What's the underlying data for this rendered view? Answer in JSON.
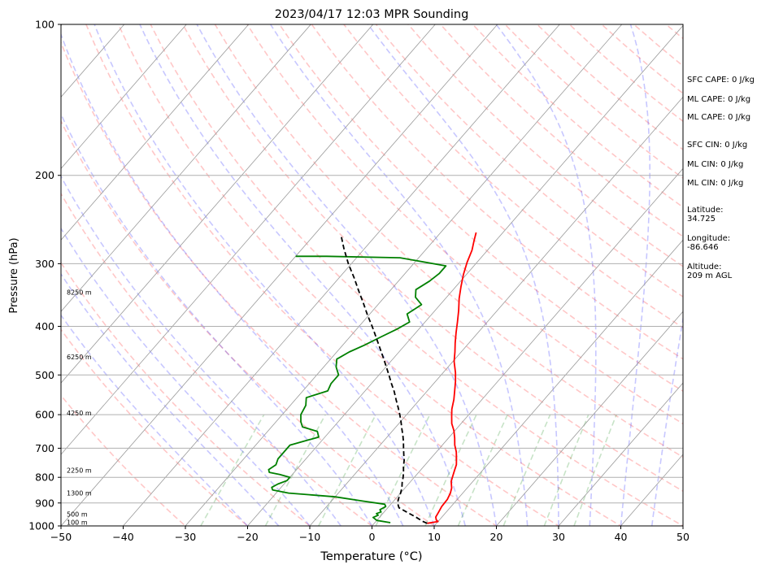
{
  "chart_data": {
    "type": "line",
    "title": "2023/04/17 12:03 MPR Sounding",
    "xlabel": "Temperature (°C)",
    "ylabel": "Pressure (hPa)",
    "xlim": [
      -50,
      50
    ],
    "ylim": [
      1000,
      100
    ],
    "y_scale": "log",
    "grid": true,
    "x_ticks": [
      "−50",
      "−40",
      "−30",
      "−20",
      "−10",
      "0",
      "10",
      "20",
      "30",
      "40",
      "50"
    ],
    "y_ticks": [
      "100",
      "200",
      "300",
      "400",
      "500",
      "600",
      "700",
      "800",
      "900",
      "1000"
    ],
    "height_labels": [
      {
        "p": 983,
        "label": "100 m"
      },
      {
        "p": 948,
        "label": "500 m"
      },
      {
        "p": 860,
        "label": "1300 m"
      },
      {
        "p": 775,
        "label": "2250 m"
      },
      {
        "p": 595,
        "label": "4250 m"
      },
      {
        "p": 460,
        "label": "6250 m"
      },
      {
        "p": 342,
        "label": "8250 m"
      }
    ],
    "series": [
      {
        "kind": "temperature",
        "color": "#ff0000",
        "points": [
          [
            988,
            8.5
          ],
          [
            980,
            10.0
          ],
          [
            973,
            9.5
          ],
          [
            960,
            9.0
          ],
          [
            940,
            8.8
          ],
          [
            915,
            8.5
          ],
          [
            885,
            8.4
          ],
          [
            860,
            8.0
          ],
          [
            840,
            7.5
          ],
          [
            815,
            6.5
          ],
          [
            795,
            6.0
          ],
          [
            775,
            5.5
          ],
          [
            755,
            5.0
          ],
          [
            735,
            4.2
          ],
          [
            712,
            3.2
          ],
          [
            690,
            2.0
          ],
          [
            668,
            1.0
          ],
          [
            645,
            -0.2
          ],
          [
            625,
            -1.5
          ],
          [
            605,
            -2.5
          ],
          [
            585,
            -3.5
          ],
          [
            560,
            -4.5
          ],
          [
            540,
            -5.5
          ],
          [
            515,
            -6.8
          ],
          [
            495,
            -8.0
          ],
          [
            470,
            -9.8
          ],
          [
            450,
            -11.0
          ],
          [
            432,
            -12.2
          ],
          [
            412,
            -13.5
          ],
          [
            392,
            -14.8
          ],
          [
            372,
            -16.2
          ],
          [
            352,
            -17.8
          ],
          [
            333,
            -19.2
          ],
          [
            315,
            -20.5
          ],
          [
            298,
            -21.6
          ],
          [
            282,
            -22.5
          ],
          [
            270,
            -23.5
          ],
          [
            260,
            -24.3
          ]
        ]
      },
      {
        "kind": "dewpoint",
        "color": "#008000",
        "points": [
          [
            985,
            2.5
          ],
          [
            975,
            0.0
          ],
          [
            962,
            -1.0
          ],
          [
            952,
            -0.5
          ],
          [
            945,
            -1.0
          ],
          [
            938,
            -0.5
          ],
          [
            928,
            -1.0
          ],
          [
            915,
            -0.5
          ],
          [
            905,
            -1.0
          ],
          [
            892,
            -5.0
          ],
          [
            875,
            -10.0
          ],
          [
            860,
            -18.0
          ],
          [
            848,
            -21.0
          ],
          [
            838,
            -21.5
          ],
          [
            825,
            -21.0
          ],
          [
            812,
            -20.0
          ],
          [
            800,
            -20.0
          ],
          [
            790,
            -22.0
          ],
          [
            782,
            -24.0
          ],
          [
            772,
            -24.5
          ],
          [
            755,
            -24.0
          ],
          [
            735,
            -24.5
          ],
          [
            712,
            -24.5
          ],
          [
            690,
            -24.5
          ],
          [
            665,
            -21.0
          ],
          [
            648,
            -22.0
          ],
          [
            635,
            -25.0
          ],
          [
            620,
            -26.0
          ],
          [
            600,
            -27.0
          ],
          [
            575,
            -27.5
          ],
          [
            555,
            -28.5
          ],
          [
            538,
            -26.0
          ],
          [
            520,
            -26.5
          ],
          [
            500,
            -26.5
          ],
          [
            482,
            -28.0
          ],
          [
            465,
            -29.0
          ],
          [
            450,
            -28.0
          ],
          [
            436,
            -26.5
          ],
          [
            420,
            -25.0
          ],
          [
            405,
            -23.5
          ],
          [
            392,
            -22.5
          ],
          [
            378,
            -24.0
          ],
          [
            362,
            -23.0
          ],
          [
            350,
            -25.0
          ],
          [
            338,
            -26.0
          ],
          [
            325,
            -25.0
          ],
          [
            314,
            -24.5
          ],
          [
            303,
            -24.5
          ],
          [
            292,
            -33.0
          ],
          [
            290,
            -45.0
          ],
          [
            290,
            -50.0
          ]
        ]
      },
      {
        "kind": "parcel",
        "color": "#000000",
        "dashed": true,
        "points": [
          [
            988,
            8.5
          ],
          [
            980,
            7.6
          ],
          [
            960,
            5.8
          ],
          [
            940,
            3.8
          ],
          [
            920,
            1.8
          ],
          [
            900,
            0.9
          ],
          [
            880,
            0.4
          ],
          [
            860,
            0.0
          ],
          [
            840,
            -0.5
          ],
          [
            820,
            -1.2
          ],
          [
            800,
            -1.8
          ],
          [
            780,
            -2.5
          ],
          [
            760,
            -3.3
          ],
          [
            740,
            -4.0
          ],
          [
            720,
            -4.9
          ],
          [
            700,
            -5.8
          ],
          [
            680,
            -6.7
          ],
          [
            660,
            -7.7
          ],
          [
            640,
            -8.8
          ],
          [
            620,
            -9.9
          ],
          [
            600,
            -11.1
          ],
          [
            580,
            -12.4
          ],
          [
            560,
            -13.8
          ],
          [
            540,
            -15.2
          ],
          [
            520,
            -16.8
          ],
          [
            500,
            -18.4
          ],
          [
            480,
            -20.1
          ],
          [
            460,
            -21.9
          ],
          [
            440,
            -23.8
          ],
          [
            420,
            -25.8
          ],
          [
            400,
            -27.9
          ],
          [
            380,
            -30.2
          ],
          [
            360,
            -32.5
          ],
          [
            340,
            -35.0
          ],
          [
            320,
            -37.6
          ],
          [
            300,
            -40.5
          ],
          [
            280,
            -43.3
          ],
          [
            265,
            -45.4
          ]
        ]
      }
    ]
  },
  "stats": {
    "sfc_cape": "SFC CAPE: 0 J/kg",
    "ml_cape_1": "ML CAPE: 0 J/kg",
    "ml_cape_2": "ML CAPE: 0 J/kg",
    "sfc_cin": "SFC CIN: 0 J/kg",
    "ml_cin_1": "ML CIN: 0 J/kg",
    "ml_cin_2": "ML CIN: 0 J/kg",
    "latitude_label": "Latitude:",
    "latitude": "34.725",
    "longitude_label": "Longitude:",
    "longitude": "-86.646",
    "altitude_label": "Altitude:",
    "altitude": "209 m AGL"
  }
}
